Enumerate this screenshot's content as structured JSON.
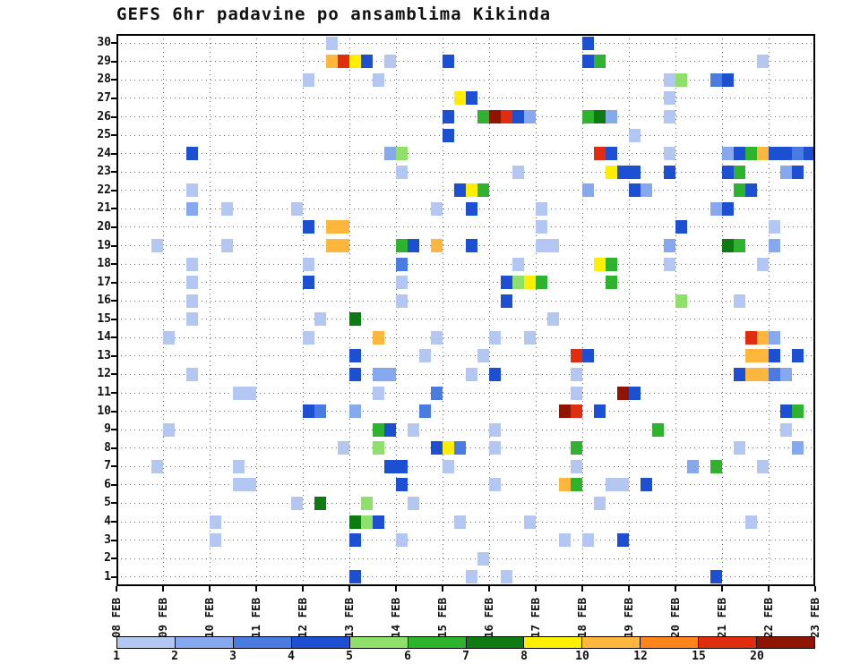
{
  "chart_data": {
    "type": "heatmap",
    "title": "GEFS 6hr padavine po ansamblima Kikinda",
    "x_axis": {
      "tick_labels": [
        "08 FEB",
        "09 FEB",
        "10 FEB",
        "11 FEB",
        "12 FEB",
        "13 FEB",
        "14 FEB",
        "15 FEB",
        "16 FEB",
        "17 FEB",
        "18 FEB",
        "19 FEB",
        "20 FEB",
        "21 FEB",
        "22 FEB",
        "23 FEB"
      ],
      "steps_per_day": 4,
      "total_steps": 60
    },
    "y_axis": {
      "min": 1,
      "max": 30,
      "tick_labels": [
        "1",
        "2",
        "3",
        "4",
        "5",
        "6",
        "7",
        "8",
        "9",
        "10",
        "11",
        "12",
        "13",
        "14",
        "15",
        "16",
        "17",
        "18",
        "19",
        "20",
        "21",
        "22",
        "23",
        "24",
        "25",
        "26",
        "27",
        "28",
        "29",
        "30"
      ]
    },
    "colorbar": {
      "tick_labels": [
        "1",
        "2",
        "3",
        "4",
        "5",
        "6",
        "7",
        "8",
        "10",
        "12",
        "15",
        "20"
      ],
      "colors": [
        "#b3c7f2",
        "#86a8ee",
        "#4a7be0",
        "#1c4fd2",
        "#8fe06a",
        "#2eb32e",
        "#0e7a12",
        "#ffee00",
        "#ffb63c",
        "#ff8419",
        "#e02c0f",
        "#8f1500"
      ]
    },
    "cells": [
      [
        18,
        30,
        0
      ],
      [
        40,
        30,
        3
      ],
      [
        18,
        29,
        8
      ],
      [
        19,
        29,
        10
      ],
      [
        20,
        29,
        7
      ],
      [
        21,
        29,
        3
      ],
      [
        23,
        29,
        0
      ],
      [
        28,
        29,
        3
      ],
      [
        40,
        29,
        3
      ],
      [
        41,
        29,
        5
      ],
      [
        55,
        29,
        0
      ],
      [
        16,
        28,
        0
      ],
      [
        22,
        28,
        0
      ],
      [
        47,
        28,
        0
      ],
      [
        48,
        28,
        4
      ],
      [
        51,
        28,
        2
      ],
      [
        52,
        28,
        3
      ],
      [
        29,
        27,
        7
      ],
      [
        30,
        27,
        3
      ],
      [
        47,
        27,
        0
      ],
      [
        28,
        26,
        3
      ],
      [
        31,
        26,
        5
      ],
      [
        32,
        26,
        11
      ],
      [
        33,
        26,
        10
      ],
      [
        34,
        26,
        3
      ],
      [
        35,
        26,
        1
      ],
      [
        40,
        26,
        5
      ],
      [
        41,
        26,
        6
      ],
      [
        42,
        26,
        1
      ],
      [
        47,
        26,
        0
      ],
      [
        28,
        25,
        3
      ],
      [
        44,
        25,
        0
      ],
      [
        6,
        24,
        3
      ],
      [
        23,
        24,
        1
      ],
      [
        24,
        24,
        4
      ],
      [
        41,
        24,
        10
      ],
      [
        42,
        24,
        3
      ],
      [
        47,
        24,
        0
      ],
      [
        52,
        24,
        1
      ],
      [
        53,
        24,
        3
      ],
      [
        54,
        24,
        5
      ],
      [
        55,
        24,
        8
      ],
      [
        56,
        24,
        3
      ],
      [
        57,
        24,
        3
      ],
      [
        58,
        24,
        2
      ],
      [
        59,
        24,
        3
      ],
      [
        24,
        23,
        0
      ],
      [
        34,
        23,
        0
      ],
      [
        42,
        23,
        7
      ],
      [
        43,
        23,
        3
      ],
      [
        44,
        23,
        3
      ],
      [
        47,
        23,
        3
      ],
      [
        52,
        23,
        3
      ],
      [
        53,
        23,
        5
      ],
      [
        57,
        23,
        1
      ],
      [
        58,
        23,
        3
      ],
      [
        6,
        22,
        0
      ],
      [
        29,
        22,
        3
      ],
      [
        30,
        22,
        7
      ],
      [
        31,
        22,
        5
      ],
      [
        40,
        22,
        1
      ],
      [
        44,
        22,
        3
      ],
      [
        45,
        22,
        1
      ],
      [
        53,
        22,
        5
      ],
      [
        54,
        22,
        3
      ],
      [
        6,
        21,
        1
      ],
      [
        9,
        21,
        0
      ],
      [
        15,
        21,
        0
      ],
      [
        27,
        21,
        0
      ],
      [
        30,
        21,
        3
      ],
      [
        36,
        21,
        0
      ],
      [
        51,
        21,
        1
      ],
      [
        52,
        21,
        3
      ],
      [
        16,
        20,
        3
      ],
      [
        18,
        20,
        8
      ],
      [
        19,
        20,
        8
      ],
      [
        36,
        20,
        0
      ],
      [
        48,
        20,
        3
      ],
      [
        56,
        20,
        0
      ],
      [
        3,
        19,
        0
      ],
      [
        9,
        19,
        0
      ],
      [
        18,
        19,
        8
      ],
      [
        19,
        19,
        8
      ],
      [
        24,
        19,
        5
      ],
      [
        25,
        19,
        3
      ],
      [
        27,
        19,
        8
      ],
      [
        30,
        19,
        3
      ],
      [
        36,
        19,
        0
      ],
      [
        37,
        19,
        0
      ],
      [
        47,
        19,
        1
      ],
      [
        52,
        19,
        6
      ],
      [
        53,
        19,
        5
      ],
      [
        56,
        19,
        1
      ],
      [
        6,
        18,
        0
      ],
      [
        16,
        18,
        0
      ],
      [
        24,
        18,
        2
      ],
      [
        34,
        18,
        0
      ],
      [
        41,
        18,
        7
      ],
      [
        42,
        18,
        5
      ],
      [
        47,
        18,
        0
      ],
      [
        55,
        18,
        0
      ],
      [
        6,
        17,
        0
      ],
      [
        16,
        17,
        3
      ],
      [
        24,
        17,
        0
      ],
      [
        33,
        17,
        3
      ],
      [
        34,
        17,
        4
      ],
      [
        35,
        17,
        7
      ],
      [
        36,
        17,
        5
      ],
      [
        42,
        17,
        5
      ],
      [
        6,
        16,
        0
      ],
      [
        24,
        16,
        0
      ],
      [
        33,
        16,
        3
      ],
      [
        48,
        16,
        4
      ],
      [
        53,
        16,
        0
      ],
      [
        6,
        15,
        0
      ],
      [
        17,
        15,
        0
      ],
      [
        20,
        15,
        6
      ],
      [
        37,
        15,
        0
      ],
      [
        4,
        14,
        0
      ],
      [
        16,
        14,
        0
      ],
      [
        22,
        14,
        8
      ],
      [
        27,
        14,
        0
      ],
      [
        32,
        14,
        0
      ],
      [
        35,
        14,
        0
      ],
      [
        54,
        14,
        10
      ],
      [
        55,
        14,
        8
      ],
      [
        56,
        14,
        1
      ],
      [
        20,
        13,
        3
      ],
      [
        26,
        13,
        0
      ],
      [
        31,
        13,
        0
      ],
      [
        39,
        13,
        10
      ],
      [
        40,
        13,
        3
      ],
      [
        54,
        13,
        8
      ],
      [
        55,
        13,
        8
      ],
      [
        56,
        13,
        3
      ],
      [
        58,
        13,
        3
      ],
      [
        6,
        12,
        0
      ],
      [
        20,
        12,
        3
      ],
      [
        22,
        12,
        1
      ],
      [
        23,
        12,
        1
      ],
      [
        30,
        12,
        0
      ],
      [
        32,
        12,
        3
      ],
      [
        39,
        12,
        0
      ],
      [
        53,
        12,
        3
      ],
      [
        54,
        12,
        8
      ],
      [
        55,
        12,
        8
      ],
      [
        56,
        12,
        2
      ],
      [
        57,
        12,
        1
      ],
      [
        10,
        11,
        0
      ],
      [
        11,
        11,
        0
      ],
      [
        22,
        11,
        0
      ],
      [
        27,
        11,
        2
      ],
      [
        39,
        11,
        0
      ],
      [
        43,
        11,
        11
      ],
      [
        44,
        11,
        3
      ],
      [
        16,
        10,
        3
      ],
      [
        17,
        10,
        2
      ],
      [
        20,
        10,
        1
      ],
      [
        26,
        10,
        2
      ],
      [
        38,
        10,
        11
      ],
      [
        39,
        10,
        10
      ],
      [
        41,
        10,
        3
      ],
      [
        57,
        10,
        3
      ],
      [
        58,
        10,
        5
      ],
      [
        4,
        9,
        0
      ],
      [
        22,
        9,
        5
      ],
      [
        23,
        9,
        3
      ],
      [
        25,
        9,
        0
      ],
      [
        32,
        9,
        0
      ],
      [
        46,
        9,
        5
      ],
      [
        57,
        9,
        0
      ],
      [
        19,
        8,
        0
      ],
      [
        22,
        8,
        4
      ],
      [
        27,
        8,
        3
      ],
      [
        28,
        8,
        7
      ],
      [
        29,
        8,
        2
      ],
      [
        32,
        8,
        0
      ],
      [
        39,
        8,
        5
      ],
      [
        53,
        8,
        0
      ],
      [
        58,
        8,
        1
      ],
      [
        3,
        7,
        0
      ],
      [
        10,
        7,
        0
      ],
      [
        23,
        7,
        3
      ],
      [
        24,
        7,
        3
      ],
      [
        28,
        7,
        0
      ],
      [
        39,
        7,
        0
      ],
      [
        49,
        7,
        1
      ],
      [
        51,
        7,
        5
      ],
      [
        55,
        7,
        0
      ],
      [
        10,
        6,
        0
      ],
      [
        11,
        6,
        0
      ],
      [
        24,
        6,
        3
      ],
      [
        32,
        6,
        0
      ],
      [
        38,
        6,
        8
      ],
      [
        39,
        6,
        5
      ],
      [
        42,
        6,
        0
      ],
      [
        43,
        6,
        0
      ],
      [
        45,
        6,
        3
      ],
      [
        15,
        5,
        0
      ],
      [
        17,
        5,
        6
      ],
      [
        21,
        5,
        4
      ],
      [
        25,
        5,
        0
      ],
      [
        41,
        5,
        0
      ],
      [
        8,
        4,
        0
      ],
      [
        20,
        4,
        6
      ],
      [
        21,
        4,
        4
      ],
      [
        22,
        4,
        3
      ],
      [
        29,
        4,
        0
      ],
      [
        35,
        4,
        0
      ],
      [
        54,
        4,
        0
      ],
      [
        8,
        3,
        0
      ],
      [
        20,
        3,
        3
      ],
      [
        24,
        3,
        0
      ],
      [
        38,
        3,
        0
      ],
      [
        40,
        3,
        0
      ],
      [
        43,
        3,
        3
      ],
      [
        31,
        2,
        0
      ],
      [
        20,
        1,
        3
      ],
      [
        30,
        1,
        0
      ],
      [
        33,
        1,
        0
      ],
      [
        51,
        1,
        3
      ]
    ]
  }
}
